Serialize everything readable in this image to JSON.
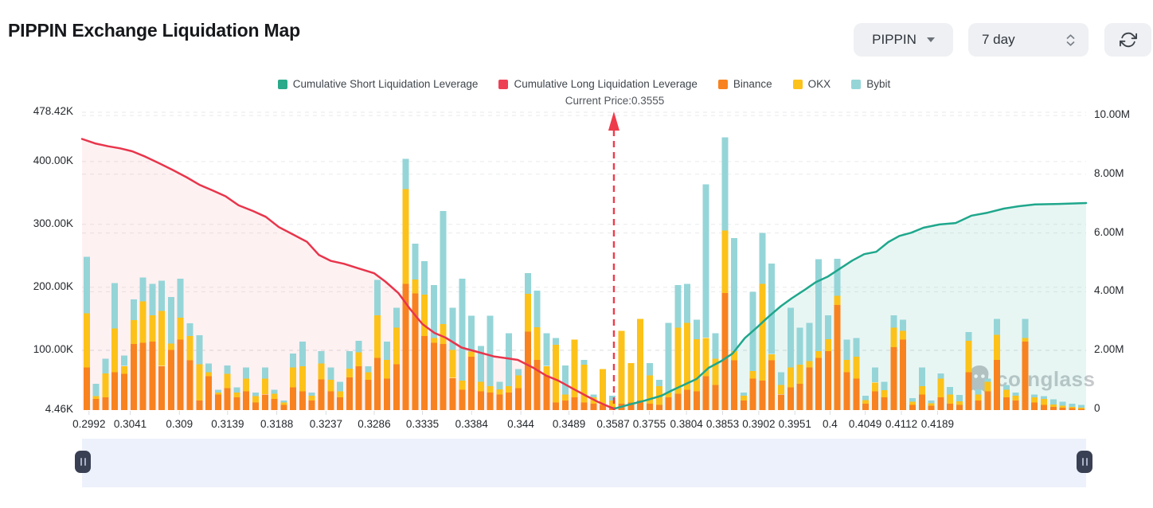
{
  "header": {
    "title": "PIPPIN Exchange Liquidation Map",
    "symbol_select": {
      "label": "PIPPIN"
    },
    "period_select": {
      "label": "7 day"
    }
  },
  "icons": {
    "symbol_dropdown": "caret-down-icon",
    "period_spinner": "chevron-up-down-icon",
    "refresh": "refresh-icon",
    "slider_handles": "pause-handle-icon",
    "watermark_logo": "coinglass-ghost-icon",
    "price_arrow": "arrow-up-icon"
  },
  "legend": [
    {
      "label": "Cumulative Short Liquidation Leverage",
      "color": "#2aaa8a"
    },
    {
      "label": "Cumulative Long Liquidation Leverage",
      "color": "#ee4055"
    },
    {
      "label": "Binance",
      "color": "#f8821f"
    },
    {
      "label": "OKX",
      "color": "#fcc21a"
    },
    {
      "label": "Bybit",
      "color": "#95d5d8"
    }
  ],
  "current_price": {
    "label": "Current Price:0.3555",
    "value": 0.3555,
    "x_fraction": 0.5297
  },
  "watermark": "coinglass",
  "chart_data": {
    "type": "bar",
    "subtype": "stacked liquidation bars (left axis, K) + cumulative leverage area lines (right axis, M)",
    "title": "PIPPIN Exchange Liquidation Map",
    "grid": "dashed horizontal gridlines for both axes",
    "legend_position": "top center",
    "left_axis": {
      "labels": [
        "478.42K",
        "400.00K",
        "300.00K",
        "200.00K",
        "100.00K",
        "4.46K"
      ],
      "values_k": [
        478.42,
        400,
        300,
        200,
        100,
        4.46
      ],
      "range_k": [
        4.46,
        478.42
      ],
      "applies_to": "stacked exchange bars"
    },
    "right_axis": {
      "labels": [
        "10.00M",
        "8.00M",
        "6.00M",
        "4.00M",
        "2.00M",
        "0"
      ],
      "values_m": [
        10,
        8,
        6,
        4,
        2,
        0
      ],
      "range_m": [
        0,
        10
      ],
      "applies_to": "cumulative liquidation leverage lines"
    },
    "x_axis": {
      "kind": "price level",
      "ticks": [
        {
          "label": "0.2992",
          "f": 0.007
        },
        {
          "label": "0.3041",
          "f": 0.048
        },
        {
          "label": "0.309",
          "f": 0.097
        },
        {
          "label": "0.3139",
          "f": 0.145
        },
        {
          "label": "0.3188",
          "f": 0.194
        },
        {
          "label": "0.3237",
          "f": 0.243
        },
        {
          "label": "0.3286",
          "f": 0.291
        },
        {
          "label": "0.3335",
          "f": 0.339
        },
        {
          "label": "0.3384",
          "f": 0.388
        },
        {
          "label": "0.344",
          "f": 0.437
        },
        {
          "label": "0.3489",
          "f": 0.485
        },
        {
          "label": "0.3587",
          "f": 0.529
        },
        {
          "label": "0.3755",
          "f": 0.565
        },
        {
          "label": "0.3804",
          "f": 0.602
        },
        {
          "label": "0.3853",
          "f": 0.638
        },
        {
          "label": "0.3902",
          "f": 0.674
        },
        {
          "label": "0.3951",
          "f": 0.71
        },
        {
          "label": "0.4",
          "f": 0.745
        },
        {
          "label": "0.4049",
          "f": 0.78
        },
        {
          "label": "0.4112",
          "f": 0.816
        },
        {
          "label": "0.4189",
          "f": 0.852
        }
      ]
    },
    "bar_series": [
      "Binance",
      "OKX",
      "Bybit"
    ],
    "bars_k": [
      [
        68,
        86,
        90
      ],
      [
        18,
        4,
        20
      ],
      [
        20,
        38,
        24
      ],
      [
        60,
        70,
        72
      ],
      [
        58,
        12,
        17
      ],
      [
        105,
        38,
        33
      ],
      [
        107,
        66,
        38
      ],
      [
        109,
        42,
        50
      ],
      [
        70,
        88,
        48
      ],
      [
        96,
        10,
        74
      ],
      [
        112,
        35,
        62
      ],
      [
        79,
        39,
        20
      ],
      [
        15,
        58,
        46
      ],
      [
        54,
        6,
        14
      ],
      [
        25,
        3,
        4
      ],
      [
        35,
        23,
        13
      ],
      [
        20,
        8,
        8
      ],
      [
        30,
        20,
        18
      ],
      [
        12,
        10,
        6
      ],
      [
        25,
        25,
        18
      ],
      [
        18,
        8,
        6
      ],
      [
        8,
        4,
        3
      ],
      [
        36,
        32,
        22
      ],
      [
        30,
        40,
        39
      ],
      [
        15,
        8,
        5
      ],
      [
        49,
        25,
        20
      ],
      [
        30,
        18,
        20
      ],
      [
        20,
        10,
        15
      ],
      [
        52,
        14,
        28
      ],
      [
        70,
        22,
        18
      ],
      [
        48,
        12,
        10
      ],
      [
        83,
        68,
        56
      ],
      [
        50,
        30,
        29
      ],
      [
        73,
        58,
        32
      ],
      [
        201,
        151,
        48
      ],
      [
        186,
        22,
        57
      ],
      [
        118,
        66,
        53
      ],
      [
        107,
        8,
        84
      ],
      [
        105,
        32,
        180
      ],
      [
        51,
        45,
        67
      ],
      [
        32,
        15,
        162
      ],
      [
        85,
        8,
        57
      ],
      [
        30,
        15,
        57
      ],
      [
        28,
        10,
        112
      ],
      [
        25,
        8,
        12
      ],
      [
        28,
        10,
        84
      ],
      [
        35,
        20,
        10
      ],
      [
        125,
        60,
        33
      ],
      [
        80,
        52,
        58
      ],
      [
        55,
        15,
        52
      ],
      [
        12,
        92,
        11
      ],
      [
        15,
        10,
        46
      ],
      [
        20,
        92,
        0
      ],
      [
        12,
        60,
        8
      ],
      [
        10,
        10,
        5
      ],
      [
        8,
        57,
        0
      ],
      [
        5,
        10,
        8
      ],
      [
        10,
        116,
        0
      ],
      [
        12,
        63,
        0
      ],
      [
        15,
        130,
        0
      ],
      [
        10,
        45,
        20
      ],
      [
        8,
        30,
        10
      ],
      [
        20,
        8,
        111
      ],
      [
        26,
        105,
        68
      ],
      [
        32,
        107,
        62
      ],
      [
        30,
        83,
        31
      ],
      [
        54,
        61,
        244
      ],
      [
        40,
        42,
        40
      ],
      [
        186,
        100,
        148
      ],
      [
        79,
        15,
        180
      ],
      [
        15,
        8,
        5
      ],
      [
        50,
        12,
        126
      ],
      [
        47,
        154,
        81
      ],
      [
        79,
        10,
        144
      ],
      [
        25,
        15,
        20
      ],
      [
        36,
        32,
        95
      ],
      [
        42,
        30,
        59
      ],
      [
        68,
        10,
        61
      ],
      [
        83,
        11,
        146
      ],
      [
        94,
        19,
        38
      ],
      [
        167,
        15,
        59
      ],
      [
        60,
        20,
        32
      ],
      [
        50,
        35,
        30
      ],
      [
        10,
        6,
        7
      ],
      [
        30,
        14,
        24
      ],
      [
        20,
        12,
        13
      ],
      [
        100,
        31,
        20
      ],
      [
        112,
        14,
        18
      ],
      [
        8,
        5,
        6
      ],
      [
        25,
        13,
        30
      ],
      [
        7,
        4,
        4
      ],
      [
        20,
        30,
        8
      ],
      [
        10,
        15,
        12
      ],
      [
        8,
        6,
        10
      ],
      [
        60,
        50,
        14
      ],
      [
        15,
        10,
        8
      ],
      [
        30,
        15,
        5
      ],
      [
        80,
        40,
        25
      ],
      [
        20,
        12,
        8
      ],
      [
        15,
        8,
        5
      ],
      [
        109,
        6,
        30
      ],
      [
        12,
        8,
        5
      ],
      [
        8,
        10,
        4
      ],
      [
        5,
        4,
        8
      ],
      [
        4,
        3,
        6
      ],
      [
        3,
        2,
        5
      ],
      [
        2,
        2,
        4
      ]
    ],
    "lines": {
      "cumulative_long_m": [
        [
          0.0,
          9.2
        ],
        [
          0.013,
          9.05
        ],
        [
          0.026,
          8.95
        ],
        [
          0.038,
          8.88
        ],
        [
          0.05,
          8.78
        ],
        [
          0.063,
          8.6
        ],
        [
          0.077,
          8.37
        ],
        [
          0.09,
          8.15
        ],
        [
          0.104,
          7.9
        ],
        [
          0.117,
          7.64
        ],
        [
          0.13,
          7.45
        ],
        [
          0.143,
          7.25
        ],
        [
          0.156,
          6.94
        ],
        [
          0.17,
          6.75
        ],
        [
          0.183,
          6.55
        ],
        [
          0.196,
          6.2
        ],
        [
          0.21,
          5.95
        ],
        [
          0.224,
          5.7
        ],
        [
          0.236,
          5.25
        ],
        [
          0.248,
          5.05
        ],
        [
          0.261,
          4.95
        ],
        [
          0.275,
          4.8
        ],
        [
          0.291,
          4.63
        ],
        [
          0.302,
          4.35
        ],
        [
          0.315,
          3.96
        ],
        [
          0.327,
          3.4
        ],
        [
          0.339,
          2.9
        ],
        [
          0.351,
          2.6
        ],
        [
          0.362,
          2.44
        ],
        [
          0.378,
          2.1
        ],
        [
          0.394,
          1.95
        ],
        [
          0.41,
          1.8
        ],
        [
          0.426,
          1.72
        ],
        [
          0.434,
          1.68
        ],
        [
          0.45,
          1.4
        ],
        [
          0.462,
          1.15
        ],
        [
          0.474,
          0.98
        ],
        [
          0.489,
          0.7
        ],
        [
          0.502,
          0.46
        ],
        [
          0.514,
          0.25
        ],
        [
          0.524,
          0.1
        ],
        [
          0.53,
          0.02
        ]
      ],
      "cumulative_short_m": [
        [
          0.53,
          0.02
        ],
        [
          0.545,
          0.16
        ],
        [
          0.561,
          0.3
        ],
        [
          0.577,
          0.46
        ],
        [
          0.588,
          0.65
        ],
        [
          0.6,
          0.84
        ],
        [
          0.612,
          1.03
        ],
        [
          0.624,
          1.41
        ],
        [
          0.636,
          1.63
        ],
        [
          0.648,
          1.9
        ],
        [
          0.66,
          2.42
        ],
        [
          0.672,
          2.78
        ],
        [
          0.684,
          3.16
        ],
        [
          0.696,
          3.51
        ],
        [
          0.707,
          3.78
        ],
        [
          0.719,
          4.05
        ],
        [
          0.731,
          4.33
        ],
        [
          0.743,
          4.52
        ],
        [
          0.755,
          4.79
        ],
        [
          0.767,
          5.06
        ],
        [
          0.779,
          5.28
        ],
        [
          0.791,
          5.36
        ],
        [
          0.803,
          5.69
        ],
        [
          0.814,
          5.9
        ],
        [
          0.826,
          6.01
        ],
        [
          0.838,
          6.18
        ],
        [
          0.854,
          6.29
        ],
        [
          0.87,
          6.34
        ],
        [
          0.886,
          6.59
        ],
        [
          0.902,
          6.69
        ],
        [
          0.918,
          6.83
        ],
        [
          0.933,
          6.91
        ],
        [
          0.949,
          6.97
        ],
        [
          0.973,
          6.99
        ],
        [
          1.0,
          7.02
        ]
      ]
    },
    "current_price": 0.3555
  }
}
